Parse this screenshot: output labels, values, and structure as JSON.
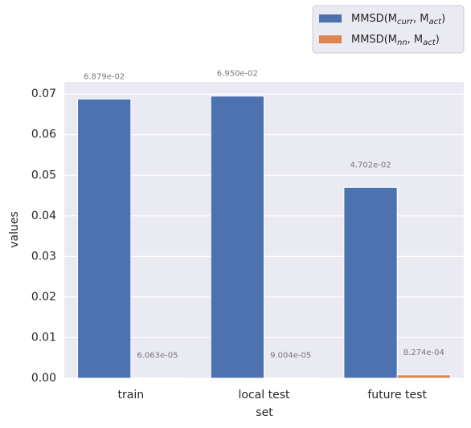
{
  "chart_data": {
    "type": "bar",
    "x_label": "set",
    "y_label": "values",
    "categories": [
      "train",
      "local test",
      "future test"
    ],
    "series": [
      {
        "name": "MMSD(M_curr, M_act)",
        "color": "#4c72b0",
        "values": [
          0.06879,
          0.0695,
          0.04702
        ],
        "value_labels": [
          "6.879e-02",
          "6.950e-02",
          "4.702e-02"
        ]
      },
      {
        "name": "MMSD(M_nn, M_act)",
        "color": "#dd8452",
        "values": [
          6.063e-05,
          9.004e-05,
          0.0008274
        ],
        "value_labels": [
          "6.063e-05",
          "9.004e-05",
          "8.274e-04"
        ]
      }
    ],
    "ylim": [
      0,
      0.073
    ],
    "yticks": [
      {
        "value": 0,
        "label": "0.00"
      },
      {
        "value": 0.01,
        "label": "0.01"
      },
      {
        "value": 0.02,
        "label": "0.02"
      },
      {
        "value": 0.03,
        "label": "0.03"
      },
      {
        "value": 0.04,
        "label": "0.04"
      },
      {
        "value": 0.05,
        "label": "0.05"
      },
      {
        "value": 0.06,
        "label": "0.06"
      },
      {
        "value": 0.07,
        "label": "0.07"
      }
    ],
    "grid": true,
    "legend": "upper right"
  }
}
